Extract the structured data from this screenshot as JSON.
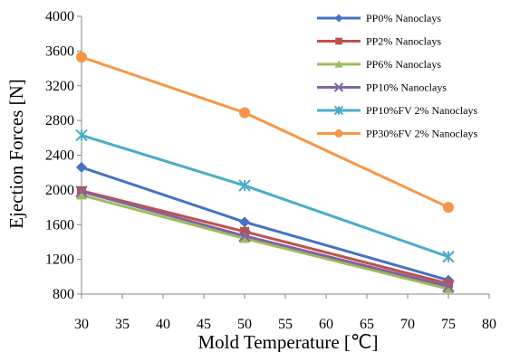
{
  "chart_data": {
    "type": "line",
    "title": "",
    "xlabel": "Mold Temperature [℃]",
    "ylabel": "Ejection Forces [N]",
    "xlim": [
      30,
      80
    ],
    "ylim": [
      800,
      4000
    ],
    "xticks": [
      "30",
      "35",
      "40",
      "45",
      "50",
      "55",
      "60",
      "65",
      "70",
      "75",
      "80"
    ],
    "yticks": [
      "800",
      "1200",
      "1600",
      "2000",
      "2400",
      "2800",
      "3200",
      "3600",
      "4000"
    ],
    "grid": false,
    "legend_position": "top-right",
    "x": [
      30,
      50,
      75
    ],
    "series": [
      {
        "name": "PP0% Nanoclays",
        "values": [
          2260,
          1630,
          960
        ],
        "color": "#4472C4",
        "marker": "diamond"
      },
      {
        "name": "PP2% Nanoclays",
        "values": [
          1990,
          1520,
          920
        ],
        "color": "#C0504D",
        "marker": "square"
      },
      {
        "name": "PP6% Nanoclays",
        "values": [
          1940,
          1440,
          860
        ],
        "color": "#9BBB59",
        "marker": "triangle"
      },
      {
        "name": "PP10% Nanoclays",
        "values": [
          1980,
          1470,
          890
        ],
        "color": "#8064A2",
        "marker": "x"
      },
      {
        "name": "PP10%FV 2% Nanoclays",
        "values": [
          2630,
          2050,
          1230
        ],
        "color": "#4BACC6",
        "marker": "star"
      },
      {
        "name": "PP30%FV 2% Nanoclays",
        "values": [
          3530,
          2890,
          1800
        ],
        "color": "#F79646",
        "marker": "circle"
      }
    ]
  }
}
